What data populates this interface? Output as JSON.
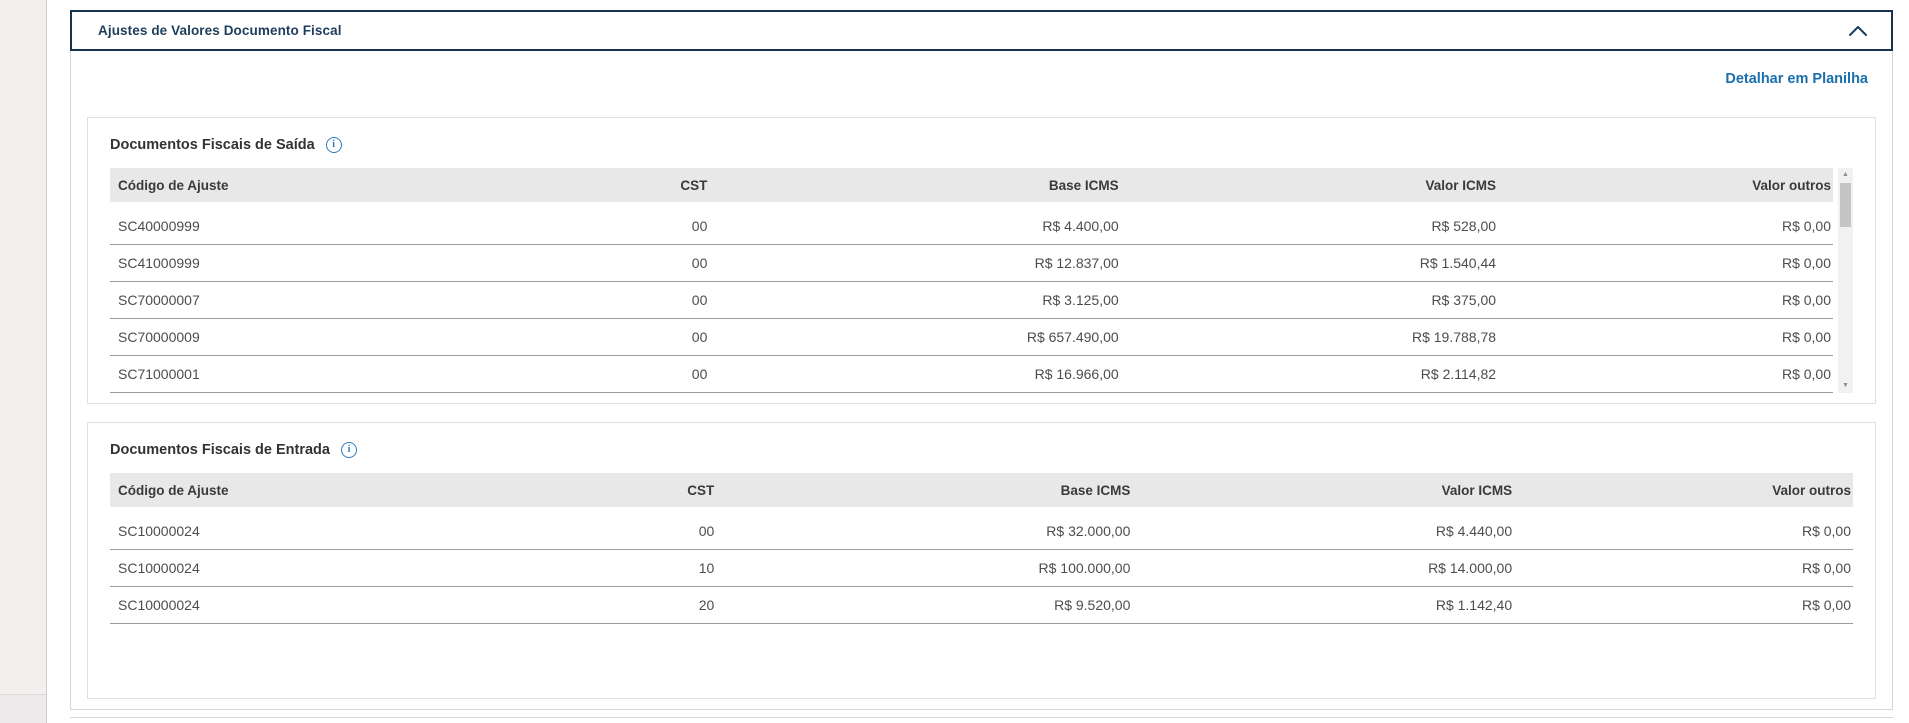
{
  "panel": {
    "title": "Ajustes de Valores Documento Fiscal",
    "detail_link_label": "Detalhar em Planilha"
  },
  "tables": [
    {
      "title": "Documentos Fiscais de Saída",
      "columns": [
        "Código de Ajuste",
        "CST",
        "Base ICMS",
        "Valor ICMS",
        "Valor outros"
      ],
      "rows": [
        [
          "SC40000999",
          "00",
          "R$ 4.400,00",
          "R$ 528,00",
          "R$ 0,00"
        ],
        [
          "SC41000999",
          "00",
          "R$ 12.837,00",
          "R$ 1.540,44",
          "R$ 0,00"
        ],
        [
          "SC70000007",
          "00",
          "R$ 3.125,00",
          "R$ 375,00",
          "R$ 0,00"
        ],
        [
          "SC70000009",
          "00",
          "R$ 657.490,00",
          "R$ 19.788,78",
          "R$ 0,00"
        ],
        [
          "SC71000001",
          "00",
          "R$ 16.966,00",
          "R$ 2.114,82",
          "R$ 0,00"
        ]
      ],
      "has_scrollbar": true
    },
    {
      "title": "Documentos Fiscais de Entrada",
      "columns": [
        "Código de Ajuste",
        "CST",
        "Base ICMS",
        "Valor ICMS",
        "Valor outros"
      ],
      "rows": [
        [
          "SC10000024",
          "00",
          "R$ 32.000,00",
          "R$ 4.440,00",
          "R$ 0,00"
        ],
        [
          "SC10000024",
          "10",
          "R$ 100.000,00",
          "R$ 14.000,00",
          "R$ 0,00"
        ],
        [
          "SC10000024",
          "20",
          "R$ 9.520,00",
          "R$ 1.142,40",
          "R$ 0,00"
        ]
      ],
      "has_scrollbar": false
    }
  ],
  "icons": {
    "info_glyph": "i",
    "scroll_up_glyph": "▲",
    "scroll_down_glyph": "▼"
  },
  "colors": {
    "panel_border_navy": "#16334f",
    "title_navy": "#1d3d5c",
    "link_blue": "#1a6fad",
    "info_blue": "#2e7dc0",
    "table_header_bg": "#e9e8e8",
    "row_separator": "#9e9c9b"
  }
}
